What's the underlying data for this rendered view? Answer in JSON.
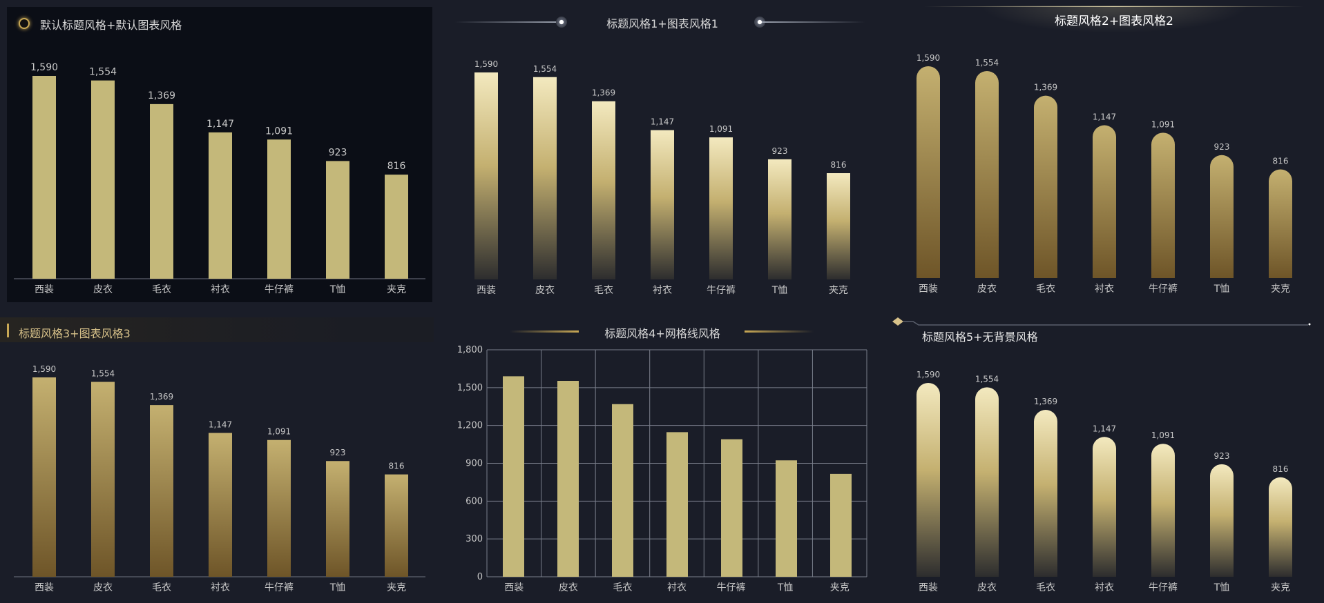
{
  "titles": {
    "t1": "默认标题风格+默认图表风格",
    "t2": "标题风格1+图表风格1",
    "t3": "标题风格2+图表风格2",
    "t4": "标题风格3+图表风格3",
    "t5": "标题风格4+网格线风格",
    "t6": "标题风格5+无背景风格"
  },
  "colors": {
    "bar": "#c4b87a",
    "gold_light": "#f3e9bf",
    "gold_mid": "#c4b070",
    "bronze": "#6e5528",
    "dark_end": "#2d2d2e",
    "axis_text": "#c8c8c8",
    "label_text": "#c8c8c8",
    "grid": "#7a7f8c",
    "background": "#1a1d28"
  },
  "chart_data": [
    {
      "type": "bar",
      "style": "default",
      "categories": [
        "西装",
        "皮衣",
        "毛衣",
        "衬衣",
        "牛仔裤",
        "T恤",
        "夹克"
      ],
      "values": [
        1590,
        1554,
        1369,
        1147,
        1091,
        923,
        816
      ],
      "labels": [
        "1,590",
        "1,554",
        "1,369",
        "1,147",
        "1,091",
        "923",
        "816"
      ]
    },
    {
      "type": "bar",
      "style": "gradient-light-to-dark",
      "categories": [
        "西装",
        "皮衣",
        "毛衣",
        "衬衣",
        "牛仔裤",
        "T恤",
        "夹克"
      ],
      "values": [
        1590,
        1554,
        1369,
        1147,
        1091,
        923,
        816
      ],
      "labels": [
        "1,590",
        "1,554",
        "1,369",
        "1,147",
        "1,091",
        "923",
        "816"
      ]
    },
    {
      "type": "bar",
      "style": "rounded-gold-to-bronze",
      "categories": [
        "西装",
        "皮衣",
        "毛衣",
        "衬衣",
        "牛仔裤",
        "T恤",
        "夹克"
      ],
      "values": [
        1590,
        1554,
        1369,
        1147,
        1091,
        923,
        816
      ],
      "labels": [
        "1,590",
        "1,554",
        "1,369",
        "1,147",
        "1,091",
        "923",
        "816"
      ]
    },
    {
      "type": "bar",
      "style": "gradient-gold-to-bronze",
      "categories": [
        "西装",
        "皮衣",
        "毛衣",
        "衬衣",
        "牛仔裤",
        "T恤",
        "夹克"
      ],
      "values": [
        1590,
        1554,
        1369,
        1147,
        1091,
        923,
        816
      ],
      "labels": [
        "1,590",
        "1,554",
        "1,369",
        "1,147",
        "1,091",
        "923",
        "816"
      ]
    },
    {
      "type": "bar",
      "style": "grid",
      "categories": [
        "西装",
        "皮衣",
        "毛衣",
        "衬衣",
        "牛仔裤",
        "T恤",
        "夹克"
      ],
      "values": [
        1590,
        1554,
        1369,
        1147,
        1091,
        923,
        816
      ],
      "ylim": [
        0,
        1800
      ],
      "yticks": [
        "0",
        "300",
        "600",
        "900",
        "1,200",
        "1,500",
        "1,800"
      ],
      "grid": true
    },
    {
      "type": "bar",
      "style": "rounded-light-to-dark",
      "categories": [
        "西装",
        "皮衣",
        "毛衣",
        "衬衣",
        "牛仔裤",
        "T恤",
        "夹克"
      ],
      "values": [
        1590,
        1554,
        1369,
        1147,
        1091,
        923,
        816
      ],
      "labels": [
        "1,590",
        "1,554",
        "1,369",
        "1,147",
        "1,091",
        "923",
        "816"
      ]
    }
  ]
}
